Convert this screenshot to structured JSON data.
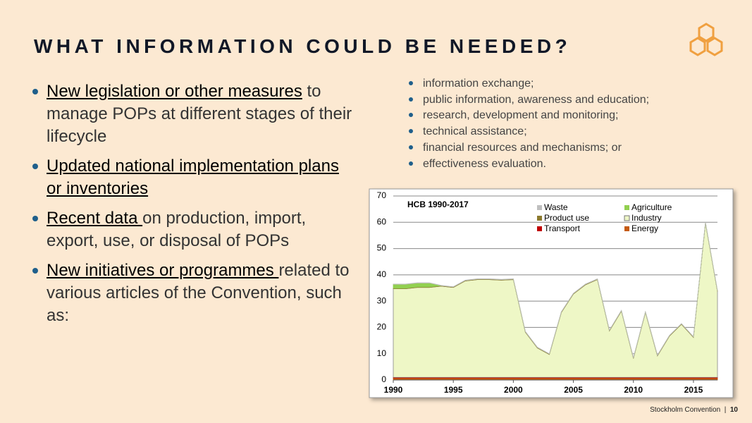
{
  "header": {
    "title": "WHAT INFORMATION COULD BE NEEDED?"
  },
  "bullets": [
    {
      "underlined": "New legislation or other measures",
      "text": " to manage POPs at different stages of their lifecycle"
    },
    {
      "underlined": "Updated national implementation plans or inventories"
    },
    {
      "underlined": "Recent data ",
      "text": "on production, import, export, use, or disposal of POPs"
    },
    {
      "underlined": "New initiatives or programmes ",
      "text": "related to various articles of the Convention, such as:"
    }
  ],
  "sub_bullets": [
    "information exchange;",
    "public information, awareness and education;",
    "research, development and monitoring;",
    "technical assistance;",
    "financial resources and mechanisms; or",
    "effectiveness evaluation."
  ],
  "footer": {
    "source": "Stockholm Convention",
    "page": "10"
  },
  "chart_data": {
    "type": "stacked_area",
    "title": "HCB 1990-2017",
    "x": [
      1990,
      1991,
      1992,
      1993,
      1994,
      1995,
      1996,
      1997,
      1998,
      1999,
      2000,
      2001,
      2002,
      2003,
      2004,
      2005,
      2006,
      2007,
      2008,
      2009,
      2010,
      2011,
      2012,
      2013,
      2014,
      2015,
      2016,
      2017
    ],
    "series": [
      {
        "name": "Waste",
        "color": "#bfbfbf",
        "values": [
          0.1,
          0.1,
          0.1,
          0.1,
          0.1,
          0.1,
          0.1,
          0.1,
          0.1,
          0.1,
          0.1,
          0.1,
          0.1,
          0.1,
          0.1,
          0.1,
          0.1,
          0.1,
          0.1,
          0.1,
          0.1,
          0.1,
          0.1,
          0.1,
          0.1,
          0.1,
          0.1,
          0.1
        ]
      },
      {
        "name": "Agriculture",
        "color": "#92d050",
        "values": [
          1.5,
          1.5,
          1.5,
          1.5,
          0,
          0,
          0,
          0,
          0,
          0,
          0,
          0,
          0,
          0,
          0,
          0,
          0,
          0,
          0,
          0,
          0,
          0,
          0,
          0,
          0,
          0,
          0,
          0
        ]
      },
      {
        "name": "Product use",
        "color": "#8c7a2e",
        "values": [
          0.2,
          0.2,
          0.2,
          0.2,
          0.2,
          0.2,
          0.2,
          0.2,
          0.2,
          0.2,
          0.2,
          0.2,
          0.2,
          0.2,
          0.2,
          0.2,
          0.2,
          0.2,
          0.2,
          0.2,
          0.2,
          0.2,
          0.2,
          0.2,
          0.2,
          0.2,
          0.2,
          0.2
        ]
      },
      {
        "name": "Industry",
        "color": "#eef7c6",
        "values": [
          33.7,
          33.7,
          34.2,
          34.2,
          34.7,
          34.2,
          36.7,
          37.2,
          37.2,
          37,
          37.2,
          17.2,
          11.2,
          8.7,
          24.7,
          31.7,
          35.2,
          37.2,
          17.7,
          25.2,
          7.2,
          24.7,
          8.2,
          15.7,
          20.2,
          15.2,
          58.7,
          32.7
        ]
      },
      {
        "name": "Transport",
        "color": "#c00000",
        "values": [
          0.2,
          0.2,
          0.2,
          0.2,
          0.2,
          0.2,
          0.2,
          0.2,
          0.2,
          0.2,
          0.2,
          0.2,
          0.2,
          0.2,
          0.2,
          0.2,
          0.2,
          0.2,
          0.2,
          0.2,
          0.2,
          0.2,
          0.2,
          0.2,
          0.2,
          0.2,
          0.2,
          0.2
        ]
      },
      {
        "name": "Energy",
        "color": "#c55a11",
        "values": [
          0.8,
          0.8,
          0.8,
          0.8,
          0.8,
          0.8,
          0.8,
          0.8,
          0.8,
          0.8,
          0.8,
          0.8,
          0.8,
          0.8,
          0.8,
          0.8,
          0.8,
          0.8,
          0.8,
          0.8,
          0.8,
          0.8,
          0.8,
          0.8,
          0.8,
          0.8,
          0.8,
          0.8
        ]
      }
    ],
    "xlim": [
      1990,
      2017
    ],
    "xticks": [
      1990,
      1995,
      2000,
      2005,
      2010,
      2015
    ],
    "ylim": [
      0,
      70
    ],
    "yticks": [
      0,
      10,
      20,
      30,
      40,
      50,
      60,
      70
    ],
    "grid": true
  }
}
